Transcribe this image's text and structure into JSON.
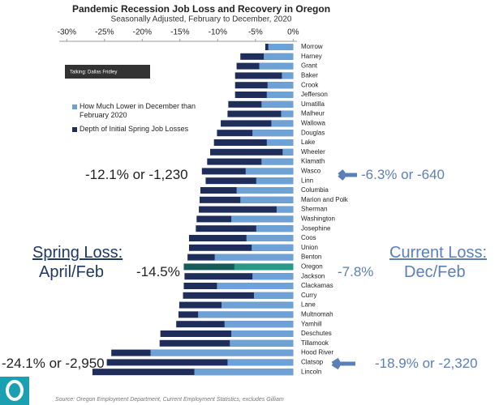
{
  "chart_data": {
    "type": "bar",
    "orientation": "horizontal",
    "title": "Pandemic Recession Job Loss and Recovery in Oregon",
    "subtitle": "Seasonally Adjusted, February to December, 2020",
    "categories": [
      "Morrow",
      "Harney",
      "Grant",
      "Baker",
      "Crook",
      "Jefferson",
      "Umatilla",
      "Malheur",
      "Wallowa",
      "Douglas",
      "Lake",
      "Wheeler",
      "Klamath",
      "Wasco",
      "Linn",
      "Columbia",
      "Marion and Polk",
      "Sherman",
      "Washington",
      "Josephine",
      "Coos",
      "Union",
      "Benton",
      "Oregon",
      "Jackson",
      "Clackamas",
      "Curry",
      "Lane",
      "Multnomah",
      "Yamhill",
      "Deschutes",
      "Tillamook",
      "Hood River",
      "Clatsop",
      "Lincoln"
    ],
    "series": [
      {
        "name": "Depth of Initial Spring Job Losses",
        "color": "#1f2d5a",
        "highlight_color": "#175a5a",
        "values": [
          -3.7,
          -7.0,
          -7.5,
          -7.7,
          -7.7,
          -7.7,
          -8.6,
          -8.7,
          -9.6,
          -10.1,
          -10.5,
          -11.0,
          -11.4,
          -12.1,
          -11.6,
          -12.3,
          -12.4,
          -12.5,
          -12.8,
          -12.9,
          -13.8,
          -13.8,
          -14.0,
          -14.5,
          -14.4,
          -14.5,
          -14.6,
          -15.1,
          -15.2,
          -15.5,
          -17.6,
          -17.7,
          -24.1,
          -24.7,
          -26.6
        ]
      },
      {
        "name": "How Much Lower in December than February 2020",
        "color": "#6ea2d6",
        "highlight_color": "#2a9a88",
        "values": [
          -3.3,
          -3.9,
          -4.5,
          -1.5,
          -3.4,
          -3.5,
          -4.2,
          -1.6,
          -2.9,
          -5.4,
          -3.5,
          -1.4,
          -4.2,
          -6.3,
          -4.9,
          -7.5,
          -7.0,
          -2.2,
          -8.2,
          -4.9,
          -6.2,
          -5.5,
          -10.4,
          -7.8,
          -5.4,
          -10.1,
          -5.2,
          -9.5,
          -12.6,
          -9.1,
          -8.2,
          -8.4,
          -18.9,
          -8.7,
          -13.1
        ]
      }
    ],
    "highlight_index": 23,
    "xlim": [
      -31,
      0.5
    ],
    "xticks": [
      {
        "value": -30,
        "label": "-30%"
      },
      {
        "value": -25,
        "label": "-25%"
      },
      {
        "value": -20,
        "label": "-20%"
      },
      {
        "value": -15,
        "label": "-15%"
      },
      {
        "value": -10,
        "label": "-10%"
      },
      {
        "value": -5,
        "label": "-5%"
      },
      {
        "value": 0,
        "label": "0%"
      }
    ],
    "legend_order": [
      1,
      0
    ],
    "speaker": "Talking: Dallas Fridley",
    "annotations": [
      "-12.1% or -1,230",
      "-6.3% or -640",
      "Spring Loss:",
      "April/Feb",
      "-14.5%",
      "-7.8%",
      "Current Loss:",
      "Dec/Feb",
      "-24.1% or -2,950",
      "-18.9% or -2,320"
    ],
    "source": "Source: Oregon Employment Department, Current Employment Statistics, excludes Gilliam"
  }
}
